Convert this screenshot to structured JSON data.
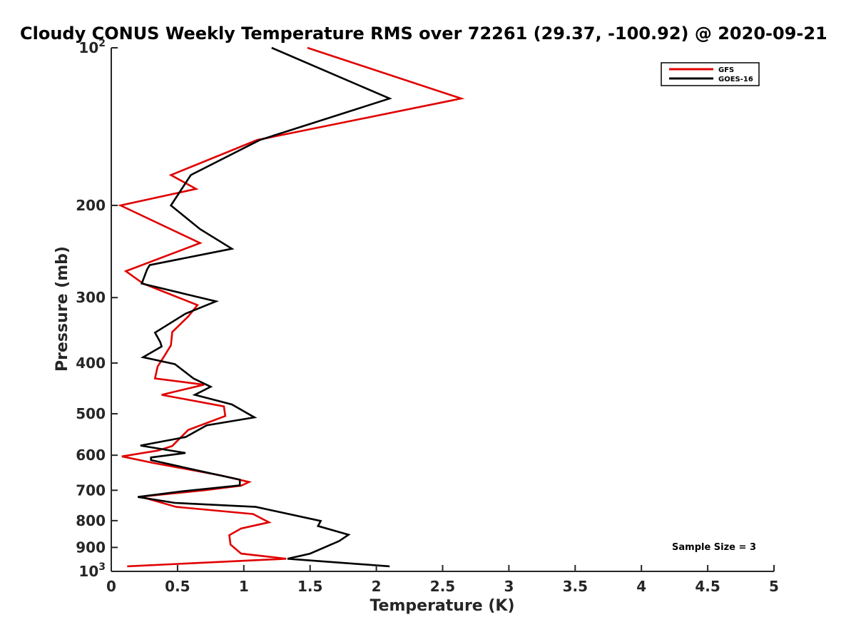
{
  "chart_data": {
    "type": "line",
    "title": "Cloudy CONUS Weekly Temperature RMS over 72261 (29.37, -100.92) @ 2020-09-21",
    "xlabel": "Temperature (K)",
    "ylabel": "Pressure (mb)",
    "xlim": [
      0,
      5
    ],
    "ylim": [
      100,
      1000
    ],
    "y_scale": "log",
    "y_reversed": true,
    "x_ticks": [
      0,
      0.5,
      1,
      1.5,
      2,
      2.5,
      3,
      3.5,
      4,
      4.5,
      5
    ],
    "x_tick_labels": [
      "0",
      "0.5",
      "1",
      "1.5",
      "2",
      "2.5",
      "3",
      "3.5",
      "4",
      "4.5",
      "5"
    ],
    "y_ticks": [
      100,
      200,
      300,
      400,
      500,
      600,
      700,
      800,
      900,
      1000
    ],
    "y_tick_labels": [
      "10^2",
      "200",
      "300",
      "400",
      "500",
      "600",
      "700",
      "800",
      "900",
      "10^3"
    ],
    "grid": false,
    "legend_position": "top-right",
    "annotation": "Sample Size = 3",
    "series": [
      {
        "name": "GFS",
        "color": "#e00000",
        "points": [
          [
            1.48,
            100
          ],
          [
            2.64,
            125
          ],
          [
            1.1,
            150
          ],
          [
            0.45,
            175
          ],
          [
            0.64,
            186
          ],
          [
            0.07,
            200
          ],
          [
            0.67,
            236
          ],
          [
            0.11,
            267
          ],
          [
            0.24,
            282
          ],
          [
            0.65,
            310
          ],
          [
            0.58,
            326
          ],
          [
            0.46,
            349
          ],
          [
            0.45,
            370
          ],
          [
            0.4,
            388
          ],
          [
            0.35,
            406
          ],
          [
            0.33,
            428
          ],
          [
            0.7,
            440
          ],
          [
            0.38,
            460
          ],
          [
            0.85,
            484
          ],
          [
            0.86,
            505
          ],
          [
            0.58,
            537
          ],
          [
            0.49,
            566
          ],
          [
            0.46,
            576
          ],
          [
            0.35,
            588
          ],
          [
            0.08,
            603
          ],
          [
            0.32,
            621
          ],
          [
            0.83,
            656
          ],
          [
            1.04,
            675
          ],
          [
            0.98,
            686
          ],
          [
            0.7,
            700
          ],
          [
            0.22,
            720
          ],
          [
            0.49,
            753
          ],
          [
            1.07,
            777
          ],
          [
            1.19,
            806
          ],
          [
            0.98,
            828
          ],
          [
            0.89,
            853
          ],
          [
            0.9,
            889
          ],
          [
            0.98,
            925
          ],
          [
            1.32,
            946
          ],
          [
            0.12,
            978
          ]
        ]
      },
      {
        "name": "GOES-16",
        "color": "#000000",
        "points": [
          [
            1.21,
            100
          ],
          [
            2.1,
            125
          ],
          [
            1.12,
            150
          ],
          [
            0.6,
            175
          ],
          [
            0.45,
            200
          ],
          [
            0.67,
            222
          ],
          [
            0.91,
            242
          ],
          [
            0.29,
            260
          ],
          [
            0.27,
            265
          ],
          [
            0.23,
            282
          ],
          [
            0.79,
            305
          ],
          [
            0.56,
            322
          ],
          [
            0.33,
            350
          ],
          [
            0.37,
            365
          ],
          [
            0.38,
            372
          ],
          [
            0.24,
            390
          ],
          [
            0.48,
            402
          ],
          [
            0.62,
            428
          ],
          [
            0.75,
            444
          ],
          [
            0.63,
            460
          ],
          [
            0.91,
            480
          ],
          [
            1.08,
            508
          ],
          [
            0.72,
            526
          ],
          [
            0.56,
            554
          ],
          [
            0.22,
            575
          ],
          [
            0.56,
            594
          ],
          [
            0.3,
            606
          ],
          [
            0.3,
            613
          ],
          [
            0.74,
            649
          ],
          [
            0.97,
            668
          ],
          [
            0.97,
            685
          ],
          [
            0.54,
            703
          ],
          [
            0.2,
            721
          ],
          [
            0.48,
            740
          ],
          [
            1.09,
            753
          ],
          [
            1.58,
            801
          ],
          [
            1.56,
            819
          ],
          [
            1.79,
            851
          ],
          [
            1.72,
            875
          ],
          [
            1.5,
            925
          ],
          [
            1.33,
            946
          ],
          [
            2.1,
            978
          ]
        ]
      }
    ]
  }
}
